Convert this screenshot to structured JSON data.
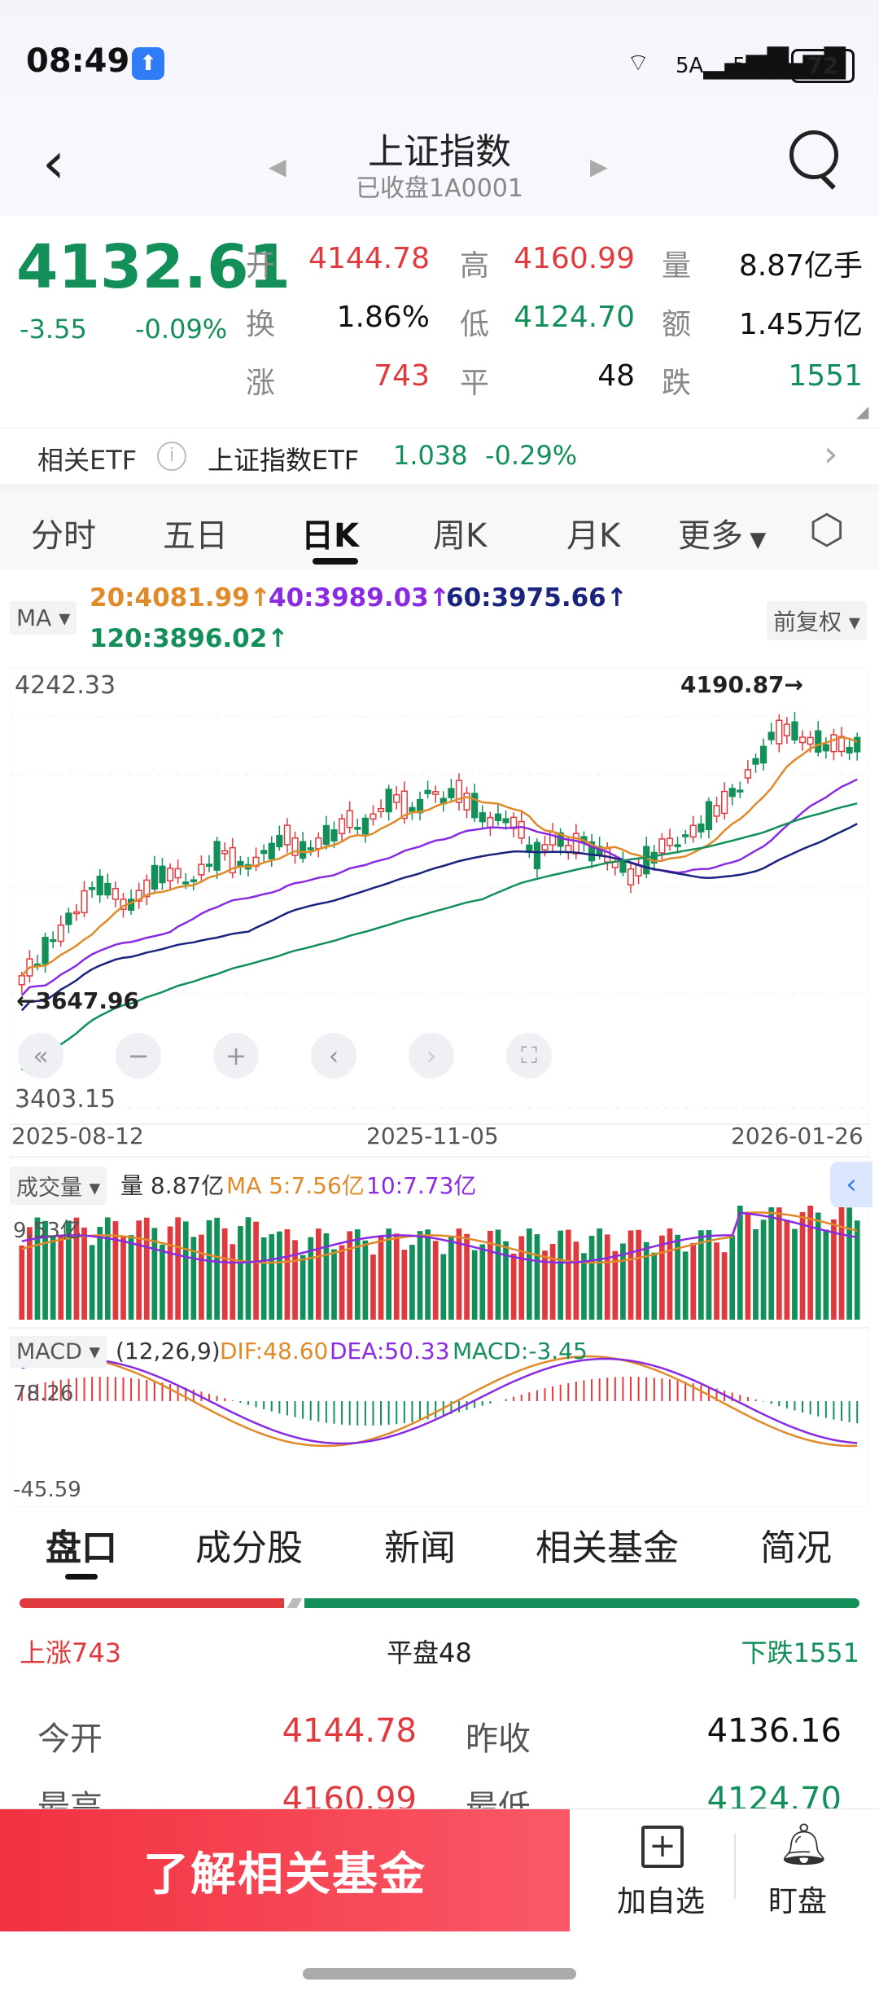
{
  "status": {
    "time": "08:49",
    "battery": "72",
    "network": "5A"
  },
  "header": {
    "title": "上证指数",
    "subtitle": "已收盘1A0001"
  },
  "quote": {
    "price": "4132.61",
    "change": "-3.55",
    "change_pct": "-0.09%",
    "open_label": "开",
    "open": "4144.78",
    "high_label": "高",
    "high": "4160.99",
    "volume_label": "量",
    "volume": "8.87亿手",
    "turnover_label": "换",
    "turnover": "1.86%",
    "low_label": "低",
    "low": "4124.70",
    "amount_label": "额",
    "amount": "1.45万亿",
    "up_label": "涨",
    "up": "743",
    "flat_label": "平",
    "flat": "48",
    "down_label": "跌",
    "down": "1551"
  },
  "etf": {
    "label": "相关ETF",
    "name": "上证指数ETF",
    "price": "1.038",
    "pct": "-0.29%"
  },
  "chart_tabs": [
    "分时",
    "五日",
    "日K",
    "周K",
    "月K",
    "更多"
  ],
  "ma": {
    "selector": "MA",
    "adjust": "前复权",
    "ma20": "20:4081.99↑",
    "ma40": "40:3989.03↑",
    "ma60": "60:3975.66↑",
    "ma120": "120:3896.02↑",
    "colors": {
      "ma20": "#e08a2a",
      "ma40": "#8a2be2",
      "ma60": "#1a237e",
      "ma120": "#13905a",
      "up": "#e03a3e",
      "down": "#13905a"
    }
  },
  "kline": {
    "ymax_label": "4242.33",
    "ymin_label": "3403.15",
    "max_marker": "4190.87→",
    "min_marker": "←3647.96",
    "dates": [
      "2025-08-12",
      "2025-11-05",
      "2026-01-26"
    ]
  },
  "volume": {
    "selector": "成交量",
    "vol": "量 8.87亿",
    "ma5": "MA 5:7.56亿",
    "ma10": "10:7.73亿",
    "ymax": "9.53亿"
  },
  "macd": {
    "selector": "MACD",
    "params": "(12,26,9)",
    "dif": "DIF:48.60",
    "dea": "DEA:50.33",
    "macd": "MACD:-3.45",
    "ymax": "78.26",
    "ymin": "-45.59"
  },
  "chart_data": {
    "type": "candlestick",
    "x_range": [
      "2025-08-12",
      "2026-01-26"
    ],
    "ylim": [
      3403.15,
      4242.33
    ],
    "max_point": {
      "value": 4190.87
    },
    "min_point": {
      "value": 3647.96
    },
    "trend_closes": [
      3660,
      3700,
      3740,
      3780,
      3820,
      3860,
      3830,
      3810,
      3850,
      3880,
      3870,
      3860,
      3900,
      3920,
      3890,
      3900,
      3930,
      3950,
      3920,
      3940,
      3960,
      3980,
      3970,
      4010,
      4030,
      4000,
      4040,
      4030,
      4040,
      4010,
      3980,
      3990,
      3960,
      3910,
      3950,
      3930,
      3940,
      3920,
      3900,
      3870,
      3900,
      3930,
      3940,
      3960,
      3990,
      4020,
      4050,
      4100,
      4150,
      4170,
      4150,
      4140,
      4135,
      4132.61
    ]
  },
  "bottom_tabs": [
    "盘口",
    "成分股",
    "新闻",
    "相关基金",
    "简况"
  ],
  "breadth": {
    "up": "上涨743",
    "flat": "平盘48",
    "down": "下跌1551"
  },
  "rows": [
    {
      "l1": "今开",
      "v1": "4144.78",
      "l2": "昨收",
      "v2": "4136.16"
    },
    {
      "l1": "最高",
      "v1": "4160.99",
      "l2": "最低",
      "v2": "4124.70"
    }
  ],
  "footer": {
    "cta": "了解相关基金",
    "add": "加自选",
    "watch": "盯盘"
  }
}
